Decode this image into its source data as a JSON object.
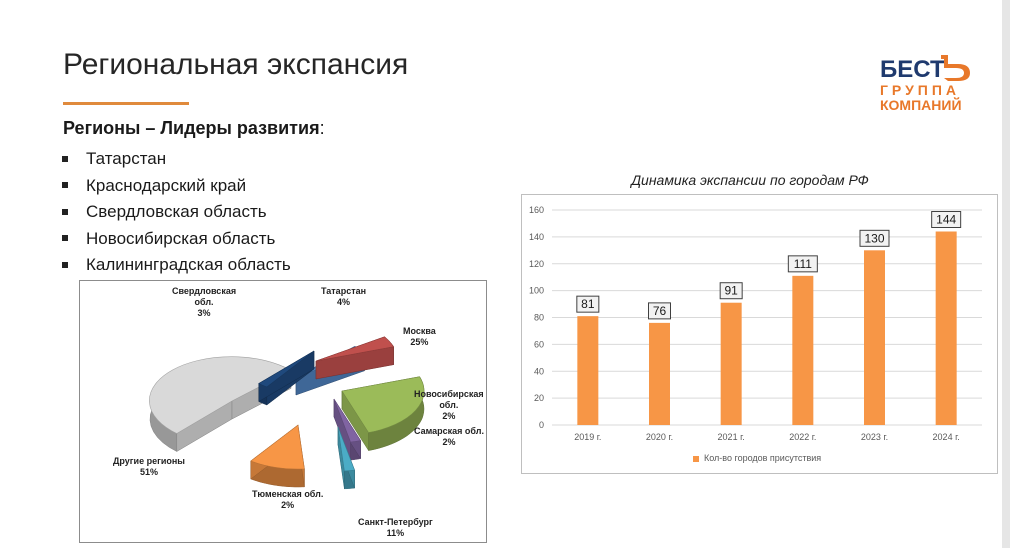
{
  "slide": {
    "title": "Региональная экспансия",
    "subtitle": "Регионы – Лидеры развития",
    "subtitle_colon": ":",
    "regions": [
      "Татарстан",
      "Краснодарский край",
      "Свердловская область",
      "Новосибирская область",
      "Калининградская область"
    ]
  },
  "logo": {
    "line1": "БЕСТЪ",
    "line2": "ГРУППА",
    "line3": "КОМПАНИЙ",
    "color": "#e8782a"
  },
  "pie": {
    "labels": [
      {
        "name": "Свердловская обл.",
        "line1": "Свердловская",
        "line2": "обл.",
        "pct": "3%"
      },
      {
        "name": "Татарстан",
        "line1": "Татарстан",
        "line2": "",
        "pct": "4%"
      },
      {
        "name": "Москва",
        "line1": "Москва",
        "line2": "",
        "pct": "25%"
      },
      {
        "name": "Новосибирская обл.",
        "line1": "Новосибирская",
        "line2": "обл.",
        "pct": "2%"
      },
      {
        "name": "Самарская обл.",
        "line1": "Самарская обл.",
        "line2": "",
        "pct": "2%"
      },
      {
        "name": "Санкт-Петербург",
        "line1": "Санкт-Петербург",
        "line2": "",
        "pct": "11%"
      },
      {
        "name": "Тюменская обл.",
        "line1": "Тюменская обл.",
        "line2": "",
        "pct": "2%"
      },
      {
        "name": "Другие регионы",
        "line1": "Другие регионы",
        "line2": "",
        "pct": "51%"
      }
    ]
  },
  "chart_data": [
    {
      "type": "bar",
      "title": "Динамика экспансии по городам РФ",
      "categories": [
        "2019 г.",
        "2020 г.",
        "2021 г.",
        "2022 г.",
        "2023 г.",
        "2024 г."
      ],
      "series": [
        {
          "name": "Кол-во городов присутствия",
          "values": [
            81,
            76,
            91,
            111,
            130,
            144
          ],
          "color": "#f79646"
        }
      ],
      "ylim": [
        0,
        160
      ],
      "yticks": [
        0,
        20,
        40,
        60,
        80,
        100,
        120,
        140,
        160
      ],
      "grid": true,
      "legend": "bottom",
      "xlabel": "",
      "ylabel": ""
    },
    {
      "type": "pie",
      "style": "3d-exploded",
      "slices": [
        {
          "label": "Другие регионы",
          "value": 51,
          "color": "#d9d9d9"
        },
        {
          "label": "Свердловская обл.",
          "value": 3,
          "color": "#4f81bd"
        },
        {
          "label": "Татарстан",
          "value": 4,
          "color": "#c0504d"
        },
        {
          "label": "Москва",
          "value": 25,
          "color": "#9bbb59"
        },
        {
          "label": "Новосибирская обл.",
          "value": 2,
          "color": "#8064a2"
        },
        {
          "label": "Самарская обл.",
          "value": 2,
          "color": "#4bacc6"
        },
        {
          "label": "Санкт-Петербург",
          "value": 11,
          "color": "#f79646"
        },
        {
          "label": "Тюменская обл.",
          "value": 2,
          "color": "#1f497d"
        }
      ]
    }
  ]
}
